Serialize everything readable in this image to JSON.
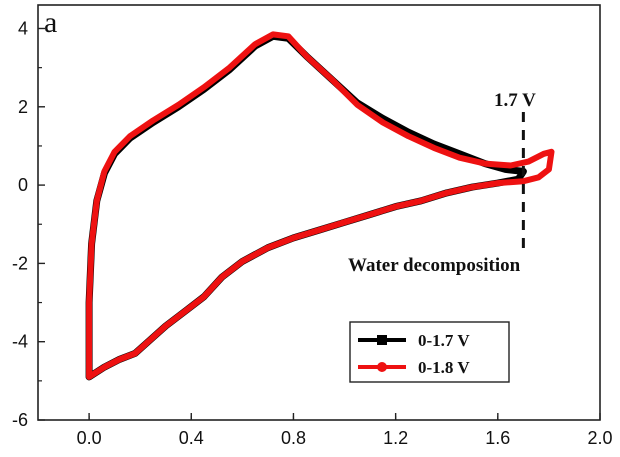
{
  "chart_data": {
    "type": "line",
    "panel_label": "a",
    "xlim": [
      -0.2,
      2.0
    ],
    "ylim": [
      -6,
      4.6
    ],
    "xticks": [
      "0.0",
      "0.4",
      "0.8",
      "1.2",
      "1.6",
      "2.0"
    ],
    "yticks": [
      "4",
      "2",
      "0",
      "-2",
      "-4",
      "-6"
    ],
    "annotations": {
      "voltage_marker": "1.7 V",
      "voltage_marker_x": 1.7,
      "water_label": "Water decomposition"
    },
    "legend_position": "bottom-right",
    "series": [
      {
        "name": "0-1.7 V",
        "color": "#000000",
        "marker": "square",
        "points": [
          [
            0.0,
            -4.9
          ],
          [
            0.0,
            -3.0
          ],
          [
            0.01,
            -1.5
          ],
          [
            0.03,
            -0.4
          ],
          [
            0.06,
            0.3
          ],
          [
            0.1,
            0.8
          ],
          [
            0.16,
            1.2
          ],
          [
            0.25,
            1.6
          ],
          [
            0.35,
            2.0
          ],
          [
            0.45,
            2.45
          ],
          [
            0.55,
            2.95
          ],
          [
            0.65,
            3.55
          ],
          [
            0.72,
            3.8
          ],
          [
            0.78,
            3.75
          ],
          [
            0.85,
            3.3
          ],
          [
            0.95,
            2.7
          ],
          [
            1.05,
            2.1
          ],
          [
            1.15,
            1.7
          ],
          [
            1.25,
            1.35
          ],
          [
            1.35,
            1.05
          ],
          [
            1.45,
            0.8
          ],
          [
            1.55,
            0.55
          ],
          [
            1.63,
            0.4
          ],
          [
            1.7,
            0.35
          ],
          [
            1.68,
            0.15
          ],
          [
            1.6,
            0.05
          ],
          [
            1.5,
            -0.05
          ],
          [
            1.4,
            -0.2
          ],
          [
            1.3,
            -0.4
          ],
          [
            1.2,
            -0.55
          ],
          [
            1.1,
            -0.75
          ],
          [
            1.0,
            -0.95
          ],
          [
            0.9,
            -1.15
          ],
          [
            0.8,
            -1.35
          ],
          [
            0.7,
            -1.6
          ],
          [
            0.6,
            -1.95
          ],
          [
            0.52,
            -2.35
          ],
          [
            0.45,
            -2.85
          ],
          [
            0.38,
            -3.2
          ],
          [
            0.3,
            -3.6
          ],
          [
            0.24,
            -3.95
          ],
          [
            0.18,
            -4.3
          ],
          [
            0.12,
            -4.45
          ],
          [
            0.06,
            -4.65
          ],
          [
            0.0,
            -4.9
          ]
        ]
      },
      {
        "name": "0-1.8 V",
        "color": "#ee1111",
        "marker": "circle",
        "points": [
          [
            0.0,
            -4.9
          ],
          [
            0.0,
            -3.0
          ],
          [
            0.01,
            -1.5
          ],
          [
            0.03,
            -0.4
          ],
          [
            0.06,
            0.35
          ],
          [
            0.1,
            0.85
          ],
          [
            0.16,
            1.25
          ],
          [
            0.25,
            1.65
          ],
          [
            0.35,
            2.05
          ],
          [
            0.45,
            2.5
          ],
          [
            0.55,
            3.0
          ],
          [
            0.65,
            3.6
          ],
          [
            0.72,
            3.85
          ],
          [
            0.78,
            3.8
          ],
          [
            0.85,
            3.3
          ],
          [
            0.95,
            2.7
          ],
          [
            1.05,
            2.05
          ],
          [
            1.15,
            1.6
          ],
          [
            1.25,
            1.25
          ],
          [
            1.35,
            0.95
          ],
          [
            1.45,
            0.7
          ],
          [
            1.55,
            0.55
          ],
          [
            1.65,
            0.5
          ],
          [
            1.72,
            0.6
          ],
          [
            1.78,
            0.8
          ],
          [
            1.81,
            0.85
          ],
          [
            1.8,
            0.4
          ],
          [
            1.76,
            0.2
          ],
          [
            1.7,
            0.1
          ],
          [
            1.6,
            0.05
          ],
          [
            1.5,
            -0.05
          ],
          [
            1.4,
            -0.2
          ],
          [
            1.3,
            -0.4
          ],
          [
            1.2,
            -0.55
          ],
          [
            1.1,
            -0.75
          ],
          [
            1.0,
            -0.95
          ],
          [
            0.9,
            -1.15
          ],
          [
            0.8,
            -1.35
          ],
          [
            0.7,
            -1.6
          ],
          [
            0.6,
            -1.95
          ],
          [
            0.52,
            -2.35
          ],
          [
            0.45,
            -2.85
          ],
          [
            0.38,
            -3.2
          ],
          [
            0.3,
            -3.6
          ],
          [
            0.24,
            -3.95
          ],
          [
            0.18,
            -4.3
          ],
          [
            0.12,
            -4.45
          ],
          [
            0.06,
            -4.65
          ],
          [
            0.0,
            -4.9
          ]
        ]
      }
    ]
  }
}
